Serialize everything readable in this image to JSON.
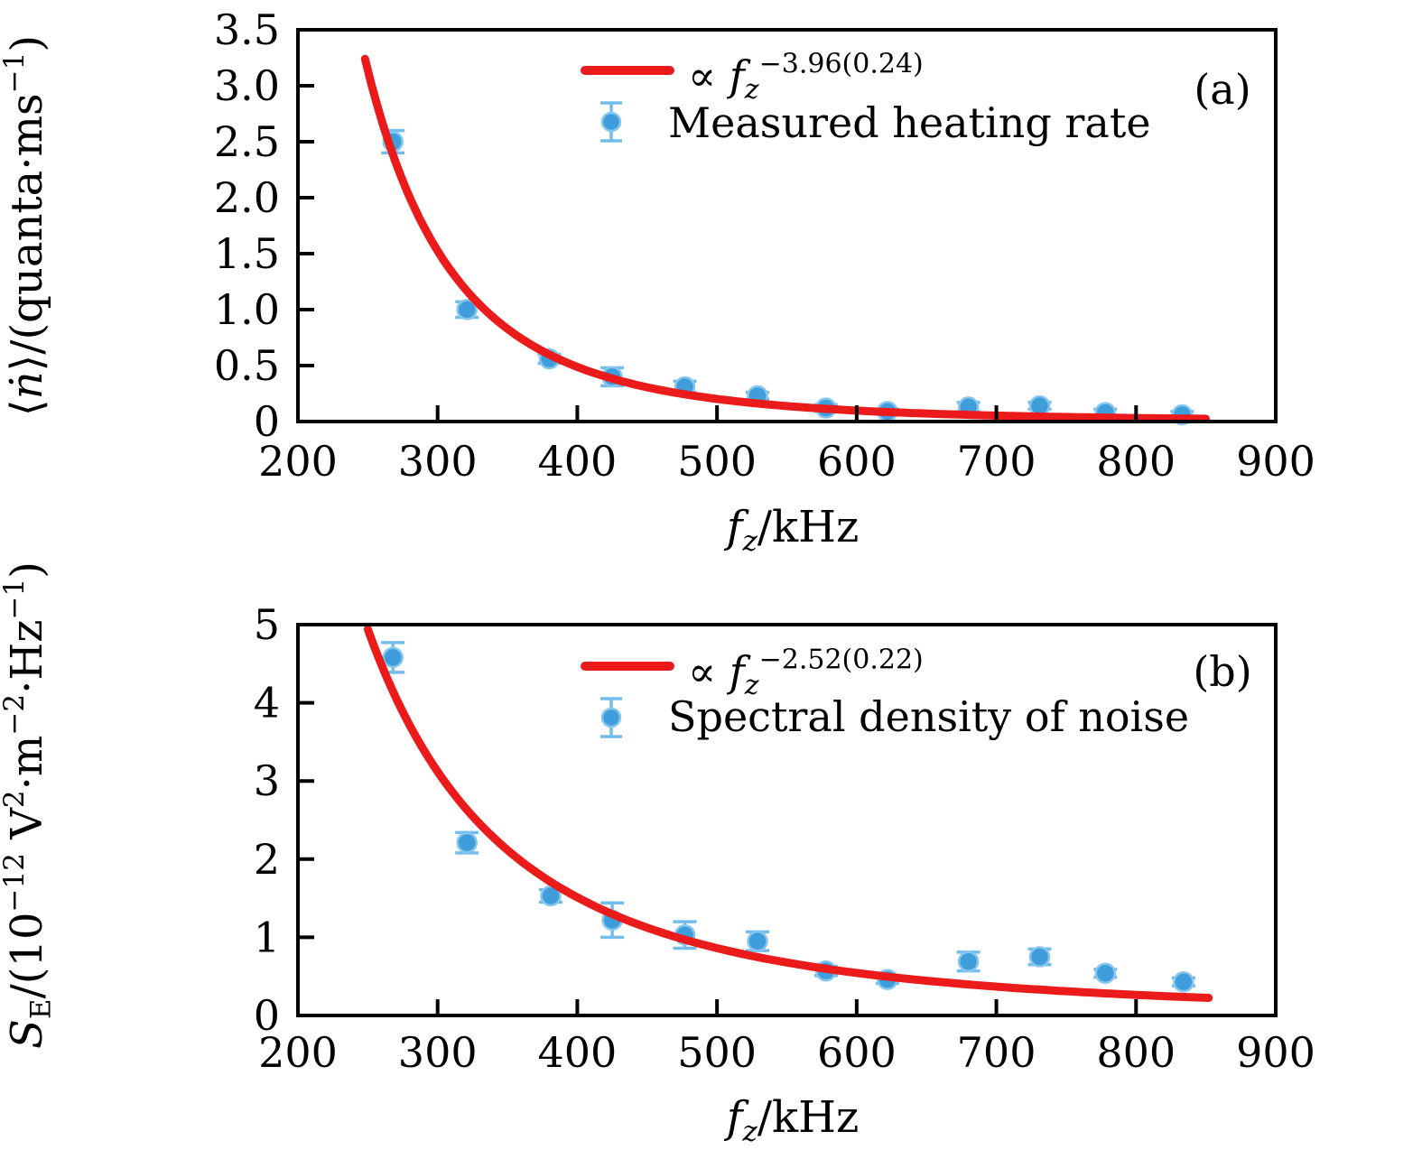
{
  "figure": {
    "background": "#ffffff",
    "colors": {
      "fit_line": "#ec1b1b",
      "marker_fill": "#3f9ddb",
      "marker_edge": "#85c6ee",
      "error_bar": "#74bdeb",
      "axis": "#000000"
    }
  },
  "chart_data": [
    {
      "type": "scatter",
      "panel_tag": "(a)",
      "title": "",
      "xlabel": "fz/kHz",
      "xlabel_parts": [
        {
          "t": "f",
          "i": 1
        },
        {
          "t": "z",
          "i": 1,
          "sub": 1
        },
        {
          "t": "/kHz"
        }
      ],
      "ylabel": "⟨ṅ⟩/(quanta·ms⁻¹)",
      "ylabel_parts": [
        {
          "t": "⟨"
        },
        {
          "t": "ṅ",
          "i": 1
        },
        {
          "t": "⟩/(quanta·ms"
        },
        {
          "t": "−1",
          "sup": 1
        },
        {
          "t": ")"
        }
      ],
      "xlim": [
        200,
        900
      ],
      "ylim": [
        0,
        3.5
      ],
      "x_ticks": [
        200,
        300,
        400,
        500,
        600,
        700,
        800,
        900
      ],
      "y_ticks": [
        0,
        0.5,
        1.0,
        1.5,
        2.0,
        2.5,
        3.0,
        3.5
      ],
      "y_tick_labels": [
        "0",
        "0.5",
        "1.0",
        "1.5",
        "2.0",
        "2.5",
        "3.0",
        "3.5"
      ],
      "grid": false,
      "legend_position": "upper center",
      "legend": [
        {
          "marker": "line",
          "label": "∝ fz^−3.96(0.24)",
          "label_parts": [
            {
              "t": "∝  "
            },
            {
              "t": "f",
              "i": 1
            },
            {
              "t": "z",
              "i": 1,
              "sub": 1
            },
            {
              "t": "−3.96(0.24)",
              "sup": 1
            }
          ]
        },
        {
          "marker": "point",
          "label": "Measured heating rate",
          "label_parts": [
            {
              "t": "Measured heating rate"
            }
          ]
        }
      ],
      "series": [
        {
          "name": "power-law fit",
          "type": "line",
          "power_law": {
            "exponent": -3.96,
            "x0": 248,
            "y0": 3.24
          },
          "x_range": [
            248,
            850
          ]
        },
        {
          "name": "measured heating rate",
          "type": "scatter",
          "x": [
            268,
            321,
            380,
            425,
            477,
            529,
            578,
            622,
            680,
            731,
            778,
            833
          ],
          "y": [
            2.5,
            1.0,
            0.56,
            0.4,
            0.31,
            0.23,
            0.12,
            0.09,
            0.13,
            0.14,
            0.08,
            0.06
          ],
          "yerr": [
            0.1,
            0.07,
            0.04,
            0.08,
            0.05,
            0.03,
            0.03,
            0.02,
            0.04,
            0.03,
            0.03,
            0.03
          ]
        }
      ]
    },
    {
      "type": "scatter",
      "panel_tag": "(b)",
      "title": "",
      "xlabel": "fz/kHz",
      "xlabel_parts": [
        {
          "t": "f",
          "i": 1
        },
        {
          "t": "z",
          "i": 1,
          "sub": 1
        },
        {
          "t": "/kHz"
        }
      ],
      "ylabel": "Sᴇ/(10⁻¹² V²·m⁻²·Hz⁻¹)",
      "ylabel_parts": [
        {
          "t": "S",
          "i": 1
        },
        {
          "t": "E",
          "sub": 1
        },
        {
          "t": "/(10"
        },
        {
          "t": "−12",
          "sup": 1
        },
        {
          "t": " V"
        },
        {
          "t": "2",
          "sup": 1
        },
        {
          "t": "·m"
        },
        {
          "t": "−2",
          "sup": 1
        },
        {
          "t": "·Hz"
        },
        {
          "t": "−1",
          "sup": 1
        },
        {
          "t": ")"
        }
      ],
      "xlim": [
        200,
        900
      ],
      "ylim": [
        0,
        5
      ],
      "x_ticks": [
        200,
        300,
        400,
        500,
        600,
        700,
        800,
        900
      ],
      "y_ticks": [
        0,
        1,
        2,
        3,
        4,
        5
      ],
      "y_tick_labels": [
        "0",
        "1",
        "2",
        "3",
        "4",
        "5"
      ],
      "grid": false,
      "legend_position": "upper center",
      "legend": [
        {
          "marker": "line",
          "label": "∝ fz^−2.52(0.22)",
          "label_parts": [
            {
              "t": "∝  "
            },
            {
              "t": "f",
              "i": 1
            },
            {
              "t": "z",
              "i": 1,
              "sub": 1
            },
            {
              "t": "−2.52(0.22)",
              "sup": 1
            }
          ]
        },
        {
          "marker": "point",
          "label": "Spectral density of noise",
          "label_parts": [
            {
              "t": "Spectral density of noise"
            }
          ]
        }
      ],
      "series": [
        {
          "name": "power-law fit",
          "type": "line",
          "power_law": {
            "exponent": -2.52,
            "x0": 250,
            "y0": 4.94
          },
          "x_range": [
            250,
            852
          ]
        },
        {
          "name": "spectral density of noise",
          "type": "scatter",
          "x": [
            268,
            321,
            381,
            425,
            477,
            529,
            578,
            622,
            680,
            731,
            778,
            834
          ],
          "y": [
            4.58,
            2.21,
            1.53,
            1.22,
            1.03,
            0.95,
            0.57,
            0.46,
            0.69,
            0.75,
            0.54,
            0.43
          ],
          "yerr": [
            0.19,
            0.13,
            0.08,
            0.22,
            0.17,
            0.12,
            0.06,
            0.05,
            0.12,
            0.1,
            0.05,
            0.05
          ]
        }
      ]
    }
  ]
}
